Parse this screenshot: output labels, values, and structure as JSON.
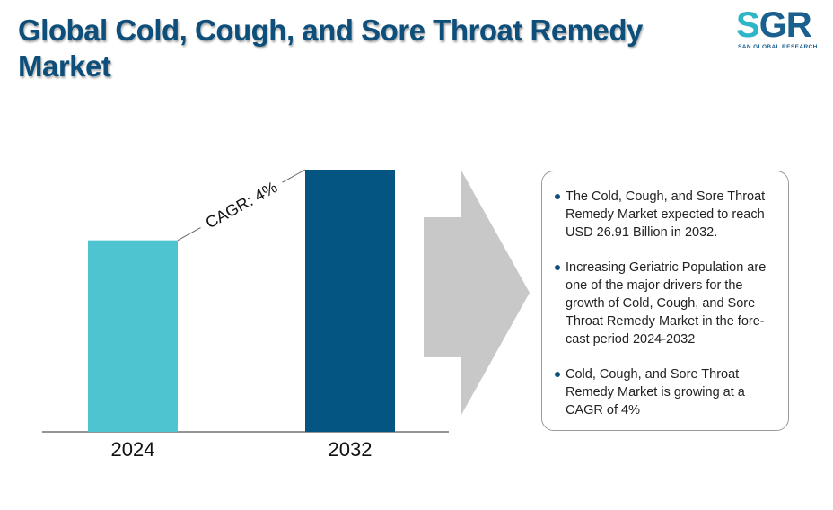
{
  "header": {
    "title": "Global Cold, Cough, and Sore Throat Remedy Market"
  },
  "logo": {
    "mark_s": "S",
    "mark_gr": "GR",
    "subtitle": "SAN GLOBAL RESEARCH"
  },
  "chart_data": {
    "type": "bar",
    "title": "",
    "xlabel": "",
    "ylabel": "",
    "categories": [
      "2024",
      "2032"
    ],
    "values": [
      19.66,
      26.91
    ],
    "ylim": [
      0,
      26.91
    ],
    "grid": false,
    "legend": "none",
    "annotation": "CAGR: 4%",
    "colors": [
      "#4fc4d1",
      "#055582"
    ]
  },
  "arrow": {
    "color": "#c8c8c8"
  },
  "info": {
    "points": [
      "The Cold, Cough, and Sore Throat Remedy Market expected to reach USD 26.91 Billion in 2032.",
      "Increasing Geriatric Population are one of the major drivers for the growth of Cold, Cough, and Sore Throat Remedy Market in the fore-cast period 2024-2032",
      "Cold, Cough, and Sore Throat Remedy Market is growing at a CAGR of 4%"
    ]
  }
}
